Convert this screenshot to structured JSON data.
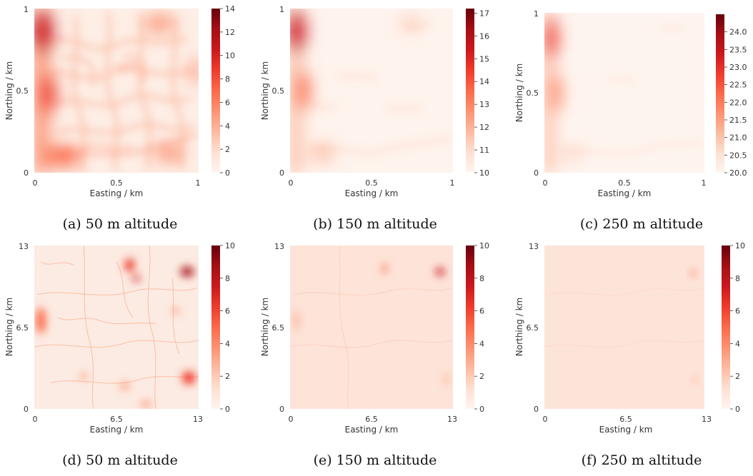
{
  "colormap": "Reds",
  "chart_data": [
    {
      "type": "heatmap",
      "caption": "(a) 50 m altitude",
      "xlabel": "Easting / km",
      "ylabel": "Northing / km",
      "xlim": [
        0,
        1
      ],
      "ylim": [
        0,
        1
      ],
      "xticks": [
        "0",
        "0.5",
        "1"
      ],
      "yticks": [
        "0",
        "0.5",
        "1"
      ],
      "colorbar": {
        "range": [
          0,
          14
        ],
        "ticks": [
          "0",
          "2",
          "4",
          "6",
          "8",
          "10",
          "12",
          "14"
        ]
      }
    },
    {
      "type": "heatmap",
      "caption": "(b) 150 m altitude",
      "xlabel": "Easting / km",
      "ylabel": "Northing / km",
      "xlim": [
        0,
        1
      ],
      "ylim": [
        0,
        1
      ],
      "xticks": [
        "0",
        "0.5",
        "1"
      ],
      "yticks": [
        "0",
        "0.5",
        "1"
      ],
      "colorbar": {
        "range": [
          10,
          17.2
        ],
        "ticks": [
          "10",
          "11",
          "12",
          "13",
          "14",
          "15",
          "16",
          "17"
        ]
      }
    },
    {
      "type": "heatmap",
      "caption": "(c) 250 m altitude",
      "xlabel": "Easting / km",
      "ylabel": "Northing / km",
      "xlim": [
        0,
        1
      ],
      "ylim": [
        0,
        1
      ],
      "xticks": [
        "0",
        "0.5",
        "1"
      ],
      "yticks": [
        "0",
        "0.5",
        "1"
      ],
      "colorbar": {
        "range": [
          20,
          24.5
        ],
        "ticks": [
          "20.0",
          "20.5",
          "21.0",
          "21.5",
          "22.0",
          "22.5",
          "23.0",
          "23.5",
          "24.0"
        ]
      }
    },
    {
      "type": "heatmap",
      "caption": "(d) 50 m altitude",
      "xlabel": "Easting / km",
      "ylabel": "Northing / km",
      "xlim": [
        0,
        13
      ],
      "ylim": [
        0,
        13
      ],
      "xticks": [
        "0",
        "6.5",
        "13"
      ],
      "yticks": [
        "0",
        "6.5",
        "13"
      ],
      "colorbar": {
        "range": [
          0,
          10
        ],
        "ticks": [
          "0",
          "2",
          "4",
          "6",
          "8",
          "10"
        ]
      }
    },
    {
      "type": "heatmap",
      "caption": "(e) 150 m altitude",
      "xlabel": "Easting / km",
      "ylabel": "Northing / km",
      "xlim": [
        0,
        13
      ],
      "ylim": [
        0,
        13
      ],
      "xticks": [
        "0",
        "6.5",
        "13"
      ],
      "yticks": [
        "0",
        "6.5",
        "13"
      ],
      "colorbar": {
        "range": [
          0,
          10
        ],
        "ticks": [
          "0",
          "2",
          "4",
          "6",
          "8",
          "10"
        ]
      }
    },
    {
      "type": "heatmap",
      "caption": "(f) 250 m altitude",
      "xlabel": "Easting / km",
      "ylabel": "Northing / km",
      "xlim": [
        0,
        13
      ],
      "ylim": [
        0,
        13
      ],
      "xticks": [
        "0",
        "6.5",
        "13"
      ],
      "yticks": [
        "0",
        "6.5",
        "13"
      ],
      "colorbar": {
        "range": [
          0,
          10
        ],
        "ticks": [
          "0",
          "2",
          "4",
          "6",
          "8",
          "10"
        ]
      }
    }
  ]
}
